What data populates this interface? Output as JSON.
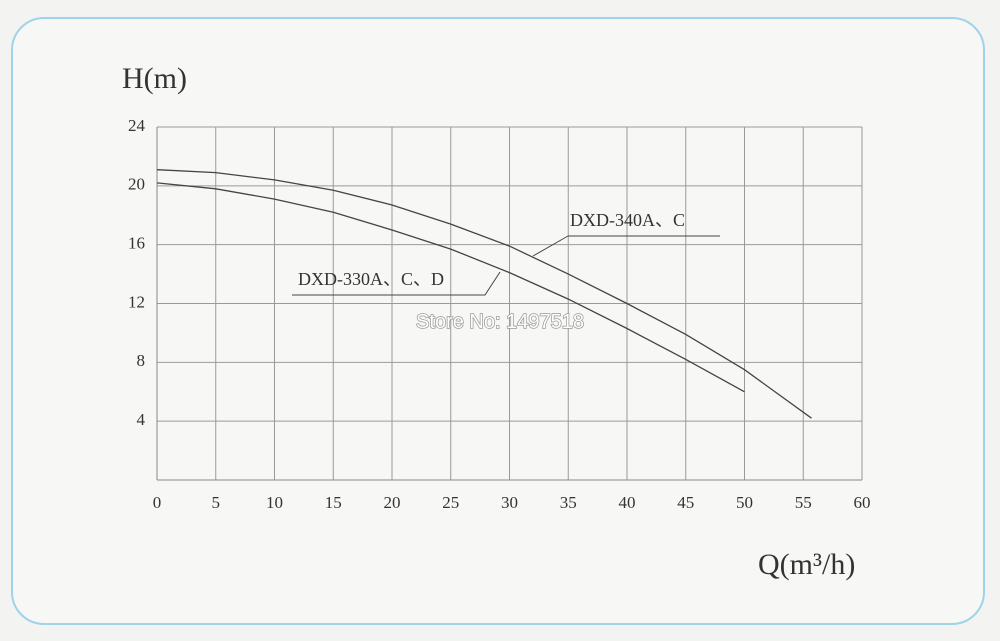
{
  "chart_data": {
    "type": "line",
    "ylabel": "H(m)",
    "xlabel": "Q(m³/h)",
    "xlim": [
      0,
      60
    ],
    "xticks": [
      0,
      5,
      10,
      15,
      20,
      25,
      30,
      35,
      40,
      45,
      50,
      55,
      60
    ],
    "ylim": [
      0,
      24
    ],
    "yticks": [
      4,
      8,
      12,
      16,
      20,
      24
    ],
    "grid": true,
    "series": [
      {
        "name": "DXD-340A、C",
        "color": "#444444",
        "x": [
          0,
          5,
          10,
          15,
          20,
          25,
          30,
          35,
          40,
          45,
          50,
          55.7
        ],
        "values": [
          21.1,
          20.9,
          20.4,
          19.7,
          18.7,
          17.4,
          15.9,
          14.0,
          12.0,
          9.9,
          7.5,
          4.2
        ]
      },
      {
        "name": "DXD-330A、C、D",
        "color": "#444444",
        "x": [
          0,
          5,
          10,
          15,
          20,
          25,
          30,
          35,
          40,
          45,
          50
        ],
        "values": [
          20.2,
          19.8,
          19.1,
          18.2,
          17.0,
          15.7,
          14.1,
          12.3,
          10.3,
          8.2,
          6.0
        ]
      }
    ],
    "watermark": "Store No: 1497518"
  }
}
